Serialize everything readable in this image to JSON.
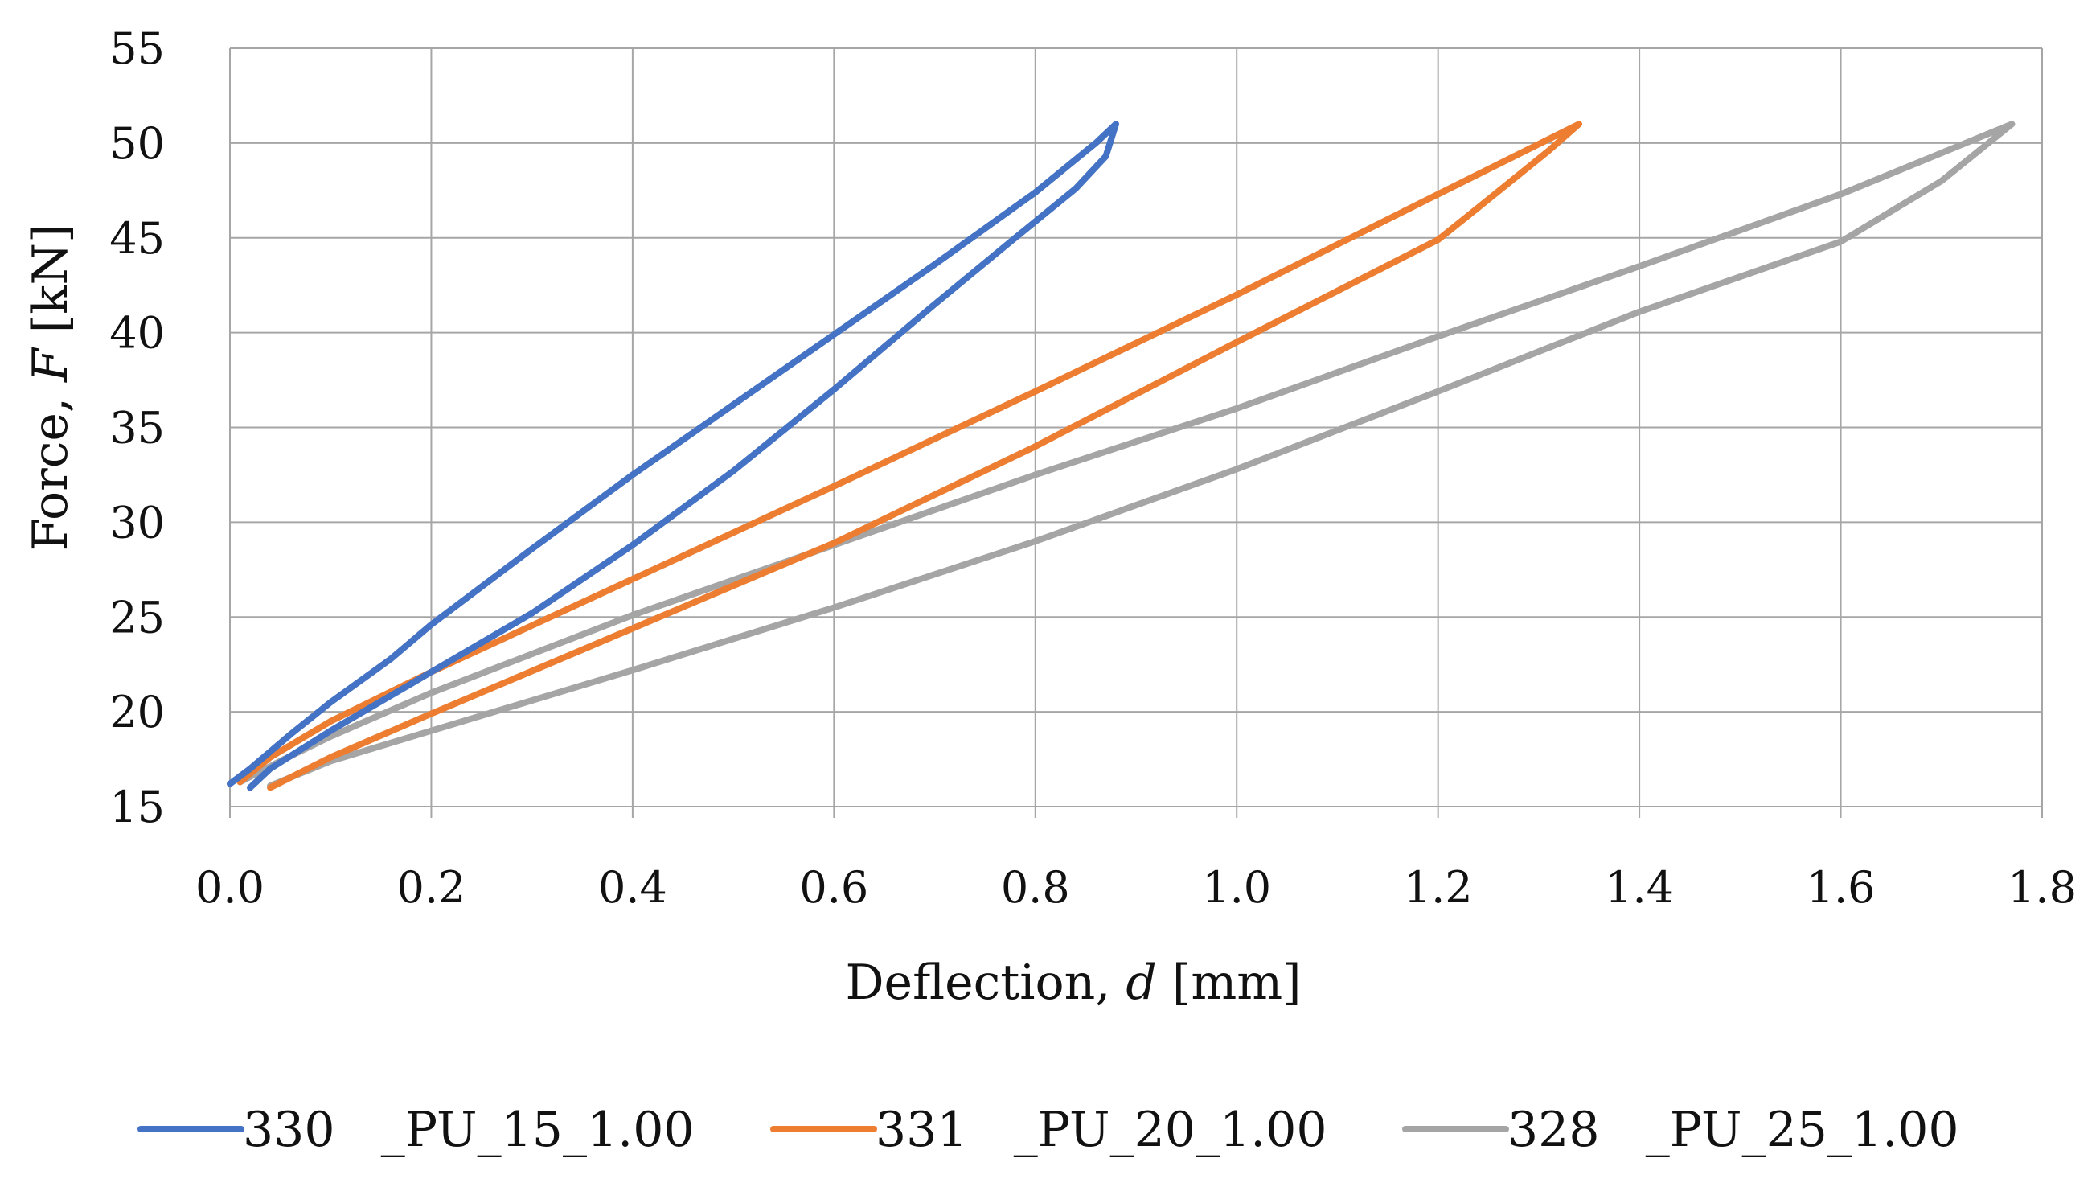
{
  "chart_data": {
    "type": "line",
    "title": "",
    "xlabel": {
      "prefix": "Deflection, ",
      "symbol": "d",
      "suffix": " [mm]"
    },
    "ylabel": {
      "prefix": "Force, ",
      "symbol": "F",
      "suffix": " [kN]"
    },
    "xlim": [
      0.0,
      1.8
    ],
    "ylim": [
      15,
      55
    ],
    "xticks": [
      "0.0",
      "0.2",
      "0.4",
      "0.6",
      "0.8",
      "1.0",
      "1.2",
      "1.4",
      "1.6",
      "1.8"
    ],
    "yticks": [
      "15",
      "20",
      "25",
      "30",
      "35",
      "40",
      "45",
      "50",
      "55"
    ],
    "grid": true,
    "legend_position": "bottom",
    "series": [
      {
        "name": "330   _PU_15_1.00",
        "color": "#4472C4",
        "points": [
          [
            0.0,
            16.2
          ],
          [
            0.02,
            17.0
          ],
          [
            0.06,
            18.8
          ],
          [
            0.1,
            20.5
          ],
          [
            0.16,
            22.8
          ],
          [
            0.2,
            24.6
          ],
          [
            0.3,
            28.6
          ],
          [
            0.4,
            32.5
          ],
          [
            0.5,
            36.2
          ],
          [
            0.6,
            39.9
          ],
          [
            0.7,
            43.6
          ],
          [
            0.8,
            47.4
          ],
          [
            0.86,
            50.0
          ],
          [
            0.88,
            51.0
          ],
          [
            0.87,
            49.3
          ],
          [
            0.84,
            47.6
          ],
          [
            0.78,
            45.0
          ],
          [
            0.7,
            41.5
          ],
          [
            0.6,
            37.0
          ],
          [
            0.5,
            32.7
          ],
          [
            0.4,
            28.8
          ],
          [
            0.3,
            25.2
          ],
          [
            0.2,
            22.1
          ],
          [
            0.1,
            19.0
          ],
          [
            0.04,
            17.0
          ],
          [
            0.02,
            16.0
          ]
        ]
      },
      {
        "name": "331   _PU_20_1.00",
        "color": "#ED7D31",
        "points": [
          [
            0.01,
            16.3
          ],
          [
            0.04,
            17.6
          ],
          [
            0.1,
            19.5
          ],
          [
            0.2,
            22.1
          ],
          [
            0.4,
            27.0
          ],
          [
            0.6,
            31.9
          ],
          [
            0.8,
            36.9
          ],
          [
            1.0,
            42.0
          ],
          [
            1.2,
            47.3
          ],
          [
            1.34,
            51.0
          ],
          [
            1.31,
            49.6
          ],
          [
            1.24,
            46.6
          ],
          [
            1.2,
            44.9
          ],
          [
            1.0,
            39.5
          ],
          [
            0.8,
            34.0
          ],
          [
            0.6,
            28.9
          ],
          [
            0.4,
            24.4
          ],
          [
            0.2,
            19.9
          ],
          [
            0.1,
            17.6
          ],
          [
            0.04,
            16.0
          ]
        ]
      },
      {
        "name": "328   _PU_25_1.00",
        "color": "#A5A5A5",
        "points": [
          [
            0.01,
            16.3
          ],
          [
            0.05,
            17.4
          ],
          [
            0.1,
            18.7
          ],
          [
            0.2,
            21.0
          ],
          [
            0.4,
            25.1
          ],
          [
            0.6,
            28.8
          ],
          [
            0.8,
            32.5
          ],
          [
            1.0,
            36.0
          ],
          [
            1.2,
            39.8
          ],
          [
            1.4,
            43.5
          ],
          [
            1.6,
            47.3
          ],
          [
            1.77,
            51.0
          ],
          [
            1.7,
            48.0
          ],
          [
            1.6,
            44.8
          ],
          [
            1.4,
            41.1
          ],
          [
            1.2,
            36.9
          ],
          [
            1.0,
            32.8
          ],
          [
            0.8,
            29.0
          ],
          [
            0.6,
            25.5
          ],
          [
            0.4,
            22.2
          ],
          [
            0.2,
            19.0
          ],
          [
            0.1,
            17.4
          ],
          [
            0.04,
            16.1
          ]
        ]
      }
    ]
  }
}
